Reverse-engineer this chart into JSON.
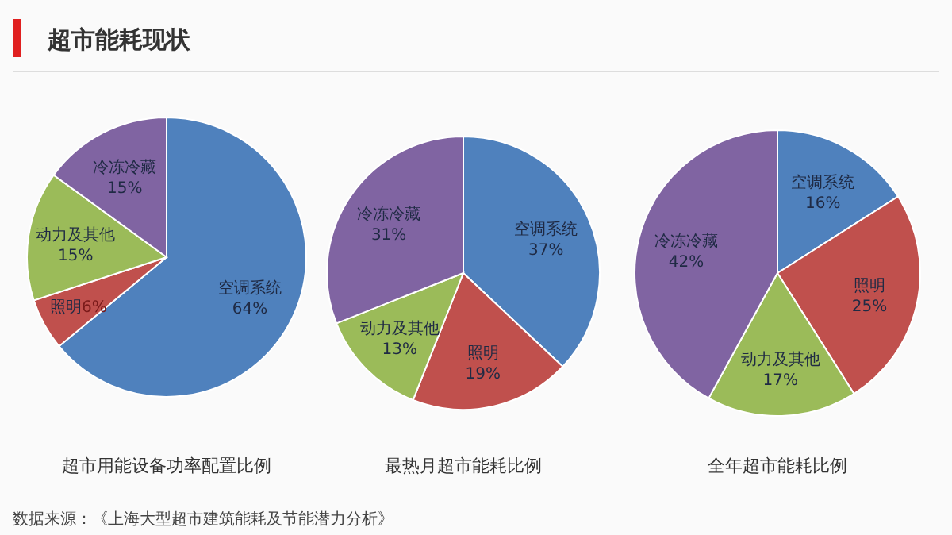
{
  "chart_data": [
    {
      "type": "other",
      "title": "超市能耗现状",
      "annotations": [
        "数据来源：《上海大型超市建筑能耗及节能潜力分析》"
      ]
    },
    {
      "type": "pie",
      "title": "超市用能设备功率配置比例",
      "categories": [
        "空调系统",
        "照明",
        "动力及其他",
        "冷冻冷藏"
      ],
      "values": [
        64,
        6,
        15,
        15
      ],
      "value_labels": [
        "64%",
        "6%",
        "15%",
        "15%"
      ],
      "colors": [
        "#4f81bd",
        "#c0504d",
        "#9bbb59",
        "#8064a2"
      ]
    },
    {
      "type": "pie",
      "title": "最热月超市能耗比例",
      "categories": [
        "空调系统",
        "照明",
        "动力及其他",
        "冷冻冷藏"
      ],
      "values": [
        37,
        19,
        13,
        31
      ],
      "value_labels": [
        "37%",
        "19%",
        "13%",
        "31%"
      ],
      "colors": [
        "#4f81bd",
        "#c0504d",
        "#9bbb59",
        "#8064a2"
      ]
    },
    {
      "type": "pie",
      "title": "全年超市能耗比例",
      "categories": [
        "空调系统",
        "照明",
        "动力及其他",
        "冷冻冷藏"
      ],
      "values": [
        16,
        25,
        17,
        42
      ],
      "value_labels": [
        "16%",
        "25%",
        "17%",
        "42%"
      ],
      "colors": [
        "#4f81bd",
        "#c0504d",
        "#9bbb59",
        "#8064a2"
      ]
    }
  ]
}
